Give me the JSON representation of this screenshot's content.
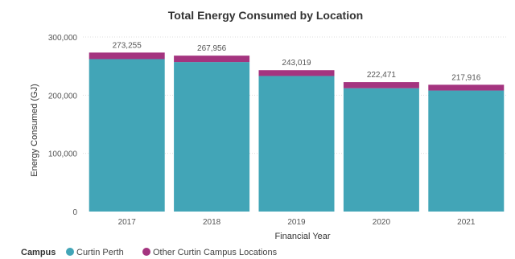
{
  "chart_data": {
    "type": "bar",
    "stacked": true,
    "title": "Total Energy Consumed by Location",
    "xlabel": "Financial Year",
    "ylabel": "Energy Consumed (GJ)",
    "categories": [
      "2017",
      "2018",
      "2019",
      "2020",
      "2021"
    ],
    "series": [
      {
        "name": "Curtin Perth",
        "color": "#42A5B7",
        "values": [
          262000,
          257000,
          233000,
          212000,
          208000
        ]
      },
      {
        "name": "Other Curtin Campus Locations",
        "color": "#A4347F",
        "values": [
          11255,
          10956,
          10019,
          10471,
          9916
        ]
      }
    ],
    "totals": [
      "273,255",
      "267,956",
      "243,019",
      "222,471",
      "217,916"
    ],
    "ylim": [
      0,
      300000
    ],
    "yticks": [
      0,
      100000,
      200000,
      300000
    ],
    "ytick_labels": [
      "0",
      "100,000",
      "200,000",
      "300,000"
    ],
    "grid": true,
    "legend": {
      "title": "Campus",
      "position": "bottom-left"
    }
  }
}
